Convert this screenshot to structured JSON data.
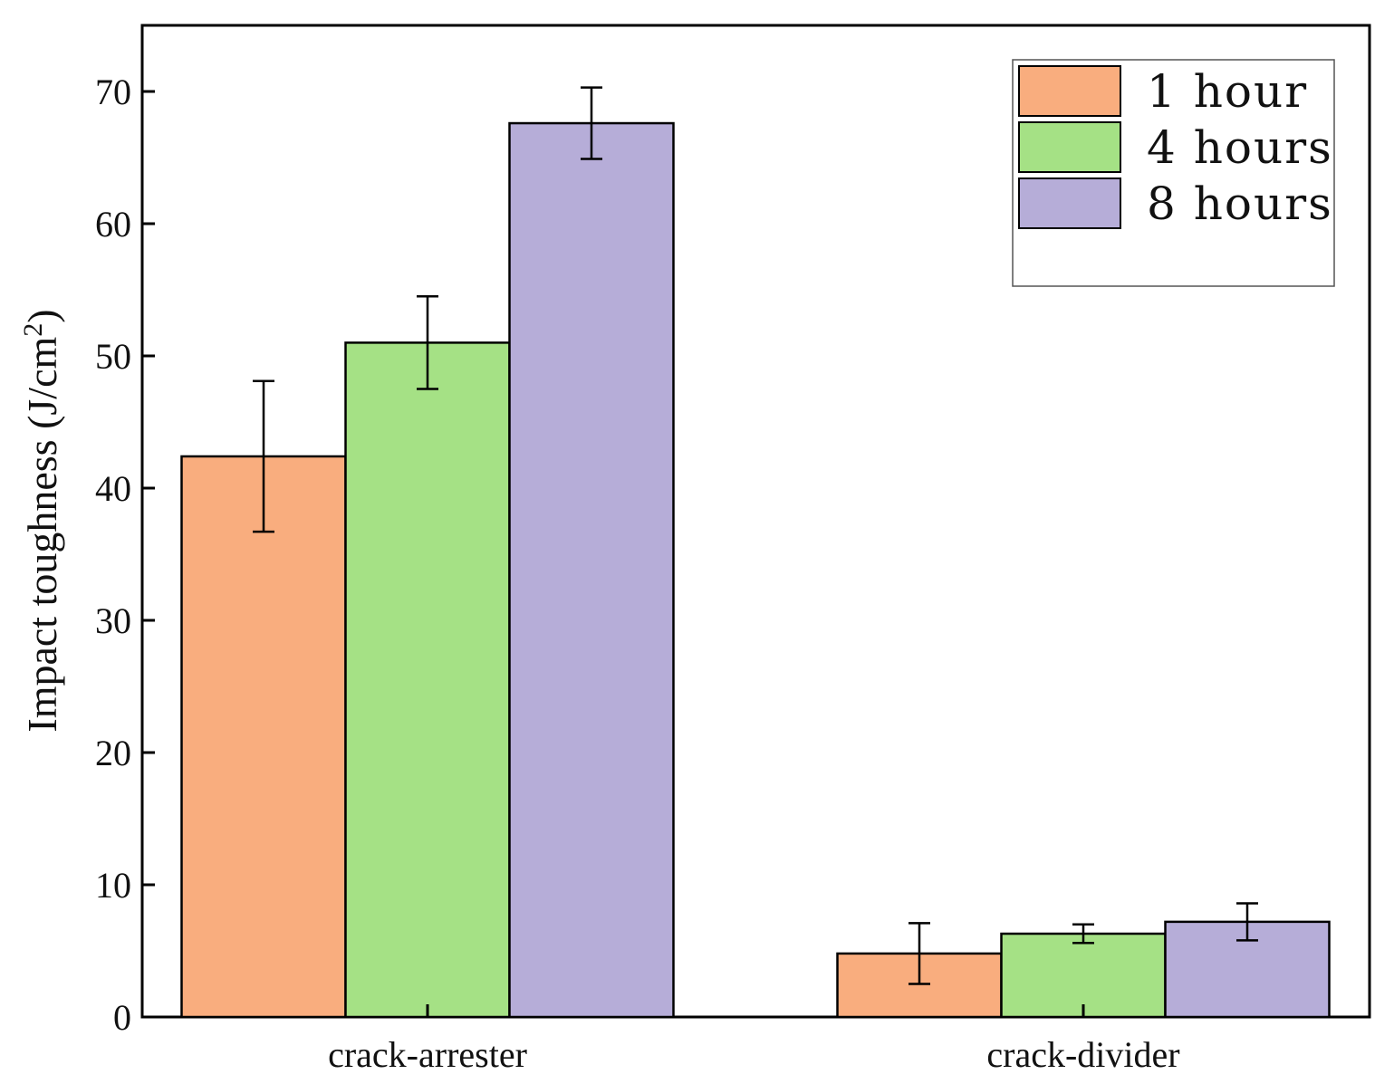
{
  "chart_data": {
    "type": "bar",
    "categories": [
      "crack-arrester",
      "crack-divider"
    ],
    "series": [
      {
        "name": "1 hour",
        "color": "#F9AD7E",
        "values": [
          42.4,
          4.8
        ],
        "errors": [
          5.7,
          2.3
        ]
      },
      {
        "name": "4 hours",
        "color": "#A5E185",
        "values": [
          51.0,
          6.3
        ],
        "errors": [
          3.5,
          0.7
        ]
      },
      {
        "name": "8 hours",
        "color": "#B6ADD8",
        "values": [
          67.6,
          7.2
        ],
        "errors": [
          2.7,
          1.4
        ]
      }
    ],
    "ylabel": "Impact toughness (J/cm",
    "ylabel_superscript": "2",
    "ylabel_close": ")",
    "xlabel": "",
    "ylim": [
      0,
      75
    ],
    "yticks": [
      "0",
      "10",
      "20",
      "30",
      "40",
      "50",
      "60",
      "70"
    ],
    "grid": false,
    "legend_position": "top-right"
  }
}
